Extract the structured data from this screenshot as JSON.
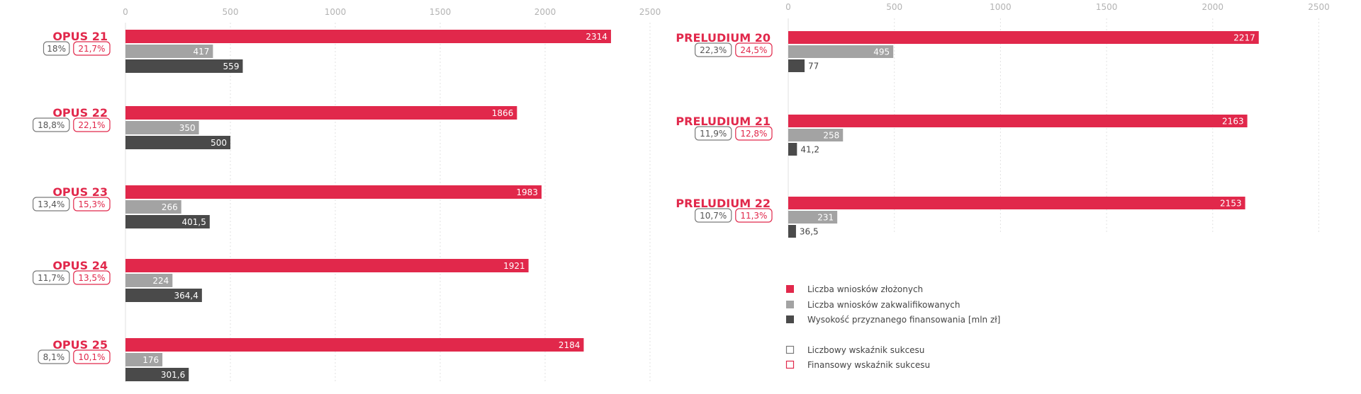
{
  "colors": {
    "submitted": "#e1284b",
    "qualified": "#a3a3a3",
    "funding": "#4a4a4a",
    "numeric_badge": "#7a7a7a",
    "financial_badge": "#e1284b"
  },
  "legend": {
    "series_submitted": "Liczba wniosków złożonych",
    "series_qualified": "Liczba wniosków zakwalifikowanych",
    "series_funding": "Wysokość przyznanego finansowania [mln zł]",
    "numeric_rate": "Liczbowy wskaźnik sukcesu",
    "financial_rate": "Finansowy wskaźnik sukcesu"
  },
  "chart_data": [
    {
      "type": "bar",
      "orientation": "horizontal",
      "xlim": [
        0,
        2500
      ],
      "xticks": [
        "0",
        "500",
        "1000",
        "1500",
        "2000",
        "2500"
      ],
      "grid": true,
      "categories": [
        "OPUS 21",
        "OPUS 22",
        "OPUS 23",
        "OPUS 24",
        "OPUS 25"
      ],
      "series": [
        {
          "name": "Liczba wniosków złożonych",
          "values": [
            2314,
            1866,
            1983,
            1921,
            2184
          ],
          "labels": [
            "2314",
            "1866",
            "1983",
            "1921",
            "2184"
          ]
        },
        {
          "name": "Liczba wniosków zakwalifikowanych",
          "values": [
            417,
            350,
            266,
            224,
            176
          ],
          "labels": [
            "417",
            "350",
            "266",
            "224",
            "176"
          ]
        },
        {
          "name": "Wysokość przyznanego finansowania [mln zł]",
          "values": [
            559,
            500,
            401.5,
            364.4,
            301.6
          ],
          "labels": [
            "559",
            "500",
            "401,5",
            "364,4",
            "301,6"
          ]
        }
      ],
      "numeric_success_rate": [
        "18%",
        "18,8%",
        "13,4%",
        "11,7%",
        "8,1%"
      ],
      "financial_success_rate": [
        "21,7%",
        "22,1%",
        "15,3%",
        "13,5%",
        "10,1%"
      ]
    },
    {
      "type": "bar",
      "orientation": "horizontal",
      "xlim": [
        0,
        2500
      ],
      "xticks": [
        "0",
        "500",
        "1000",
        "1500",
        "2000",
        "2500"
      ],
      "grid": true,
      "categories": [
        "PRELUDIUM 20",
        "PRELUDIUM 21",
        "PRELUDIUM 22"
      ],
      "series": [
        {
          "name": "Liczba wniosków złożonych",
          "values": [
            2217,
            2163,
            2153
          ],
          "labels": [
            "2217",
            "2163",
            "2153"
          ]
        },
        {
          "name": "Liczba wniosków zakwalifikowanych",
          "values": [
            495,
            258,
            231
          ],
          "labels": [
            "495",
            "258",
            "231"
          ]
        },
        {
          "name": "Wysokość przyznanego finansowania [mln zł]",
          "values": [
            77,
            41.2,
            36.5
          ],
          "labels": [
            "77",
            "41,2",
            "36,5"
          ]
        }
      ],
      "numeric_success_rate": [
        "22,3%",
        "11,9%",
        "10,7%"
      ],
      "financial_success_rate": [
        "24,5%",
        "12,8%",
        "11,3%"
      ],
      "legend_position": "bottom"
    }
  ]
}
